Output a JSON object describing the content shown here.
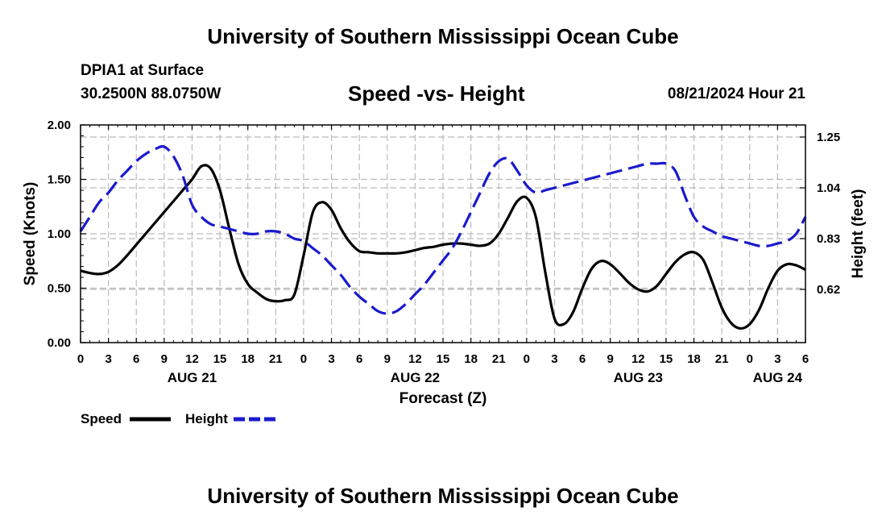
{
  "header": {
    "title": "University of Southern Mississippi Ocean Cube",
    "station": "DPIA1 at Surface",
    "coordinates": "30.2500N  88.0750W",
    "subtitle": "Speed -vs- Height",
    "datetime": "08/21/2024 Hour 21"
  },
  "footer": {
    "title": "University of Southern Mississippi Ocean Cube"
  },
  "chart_data": {
    "type": "line",
    "title": "Speed -vs- Height",
    "xlabel": "Forecast (Z)",
    "ylabel": "Speed (Knots)",
    "y2label": "Height (feet)",
    "x_unit": "forecast hours from AUG 21 00Z",
    "xlim": [
      0,
      78
    ],
    "ylim": [
      0,
      2.0
    ],
    "y2lim": [
      0.4,
      1.3
    ],
    "grid": true,
    "x_ticks": [
      {
        "x": 0,
        "label": "0"
      },
      {
        "x": 3,
        "label": "3"
      },
      {
        "x": 6,
        "label": "6"
      },
      {
        "x": 9,
        "label": "9"
      },
      {
        "x": 12,
        "label": "12"
      },
      {
        "x": 15,
        "label": "15"
      },
      {
        "x": 18,
        "label": "18"
      },
      {
        "x": 21,
        "label": "21"
      },
      {
        "x": 24,
        "label": "0"
      },
      {
        "x": 27,
        "label": "3"
      },
      {
        "x": 30,
        "label": "6"
      },
      {
        "x": 33,
        "label": "9"
      },
      {
        "x": 36,
        "label": "12"
      },
      {
        "x": 39,
        "label": "15"
      },
      {
        "x": 42,
        "label": "18"
      },
      {
        "x": 45,
        "label": "21"
      },
      {
        "x": 48,
        "label": "0"
      },
      {
        "x": 51,
        "label": "3"
      },
      {
        "x": 54,
        "label": "6"
      },
      {
        "x": 57,
        "label": "9"
      },
      {
        "x": 60,
        "label": "12"
      },
      {
        "x": 63,
        "label": "15"
      },
      {
        "x": 66,
        "label": "18"
      },
      {
        "x": 69,
        "label": "21"
      },
      {
        "x": 72,
        "label": "0"
      },
      {
        "x": 75,
        "label": "3"
      },
      {
        "x": 78,
        "label": "6"
      }
    ],
    "date_labels": [
      {
        "x": 12,
        "label": "AUG 21"
      },
      {
        "x": 36,
        "label": "AUG 22"
      },
      {
        "x": 60,
        "label": "AUG 23"
      },
      {
        "x": 75,
        "label": "AUG 24"
      }
    ],
    "y_ticks": [
      {
        "value": 0.0,
        "label": "0.00"
      },
      {
        "value": 0.5,
        "label": "0.50"
      },
      {
        "value": 1.0,
        "label": "1.00"
      },
      {
        "value": 1.5,
        "label": "1.50"
      },
      {
        "value": 2.0,
        "label": "2.00"
      }
    ],
    "y2_ticks": [
      {
        "value": 0.62,
        "label": "0.62"
      },
      {
        "value": 0.83,
        "label": "0.83"
      },
      {
        "value": 1.04,
        "label": "1.04"
      },
      {
        "value": 1.25,
        "label": "1.25"
      }
    ],
    "legend": [
      {
        "name": "Speed",
        "color": "#000000",
        "style": "solid"
      },
      {
        "name": "Height",
        "color": "#1a1acc",
        "style": "dashed"
      }
    ],
    "legend_position": "bottom-left",
    "series": [
      {
        "name": "Speed",
        "axis": "left",
        "color": "#000000",
        "dash": "solid",
        "x": [
          0,
          1,
          2,
          3,
          4,
          5,
          6,
          7,
          8,
          9,
          10,
          11,
          12,
          13,
          14,
          15,
          16,
          17,
          18,
          19,
          20,
          21,
          22,
          23,
          24,
          25,
          26,
          27,
          28,
          29,
          30,
          31,
          32,
          33,
          34,
          35,
          36,
          37,
          38,
          39,
          40,
          41,
          42,
          43,
          44,
          45,
          46,
          47,
          48,
          49,
          50,
          51,
          52,
          53,
          54,
          55,
          56,
          57,
          58,
          59,
          60,
          61,
          62,
          63,
          64,
          65,
          66,
          67,
          68,
          69,
          70,
          71,
          72,
          73,
          74,
          75,
          76,
          77,
          78
        ],
        "values": [
          0.66,
          0.64,
          0.63,
          0.65,
          0.71,
          0.8,
          0.9,
          1.0,
          1.1,
          1.2,
          1.3,
          1.4,
          1.5,
          1.62,
          1.6,
          1.4,
          1.05,
          0.72,
          0.54,
          0.46,
          0.4,
          0.38,
          0.39,
          0.44,
          0.8,
          1.2,
          1.29,
          1.22,
          1.05,
          0.92,
          0.84,
          0.83,
          0.82,
          0.82,
          0.82,
          0.83,
          0.85,
          0.87,
          0.88,
          0.9,
          0.91,
          0.91,
          0.9,
          0.89,
          0.91,
          1.0,
          1.15,
          1.3,
          1.33,
          1.15,
          0.65,
          0.22,
          0.17,
          0.28,
          0.5,
          0.68,
          0.75,
          0.72,
          0.64,
          0.55,
          0.49,
          0.47,
          0.52,
          0.63,
          0.74,
          0.81,
          0.83,
          0.76,
          0.55,
          0.32,
          0.18,
          0.13,
          0.17,
          0.3,
          0.5,
          0.66,
          0.72,
          0.71,
          0.67
        ]
      },
      {
        "name": "Height",
        "axis": "right",
        "color": "#1a1acc",
        "dash": "dashed",
        "x": [
          0,
          1,
          2,
          3,
          4,
          5,
          6,
          7,
          8,
          9,
          10,
          11,
          12,
          13,
          14,
          15,
          16,
          17,
          18,
          19,
          20,
          21,
          22,
          23,
          24,
          25,
          26,
          27,
          28,
          29,
          30,
          31,
          32,
          33,
          34,
          35,
          36,
          37,
          38,
          39,
          40,
          41,
          42,
          43,
          44,
          45,
          46,
          47,
          48,
          49,
          50,
          51,
          52,
          53,
          54,
          55,
          56,
          57,
          58,
          59,
          60,
          61,
          62,
          63,
          64,
          65,
          66,
          67,
          68,
          69,
          70,
          71,
          72,
          73,
          74,
          75,
          76,
          77,
          78
        ],
        "values": [
          0.86,
          0.92,
          0.98,
          1.02,
          1.07,
          1.11,
          1.15,
          1.18,
          1.2,
          1.21,
          1.17,
          1.09,
          0.97,
          0.92,
          0.89,
          0.88,
          0.87,
          0.86,
          0.85,
          0.85,
          0.86,
          0.86,
          0.85,
          0.83,
          0.82,
          0.79,
          0.76,
          0.72,
          0.68,
          0.63,
          0.59,
          0.56,
          0.53,
          0.52,
          0.53,
          0.56,
          0.6,
          0.64,
          0.69,
          0.74,
          0.79,
          0.86,
          0.94,
          1.02,
          1.1,
          1.15,
          1.16,
          1.11,
          1.05,
          1.02,
          1.03,
          1.04,
          1.05,
          1.06,
          1.07,
          1.08,
          1.09,
          1.1,
          1.11,
          1.12,
          1.13,
          1.14,
          1.14,
          1.14,
          1.11,
          1.01,
          0.92,
          0.88,
          0.86,
          0.84,
          0.83,
          0.82,
          0.81,
          0.8,
          0.8,
          0.81,
          0.82,
          0.85,
          0.92
        ]
      }
    ]
  }
}
